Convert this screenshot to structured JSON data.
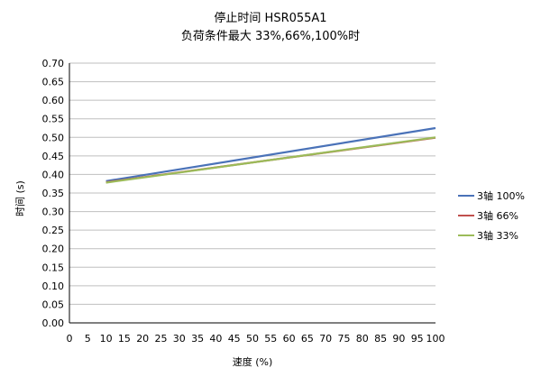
{
  "chart_data": {
    "type": "line",
    "title": "停止时间 HSR055A1",
    "subtitle": "负荷条件最大 33%,66%,100%时",
    "xlabel": "速度 (%)",
    "ylabel": "时间 (s)",
    "xlim": [
      0,
      100
    ],
    "ylim": [
      0.0,
      0.7
    ],
    "x_ticks": [
      "0",
      "5",
      "10",
      "15",
      "20",
      "25",
      "30",
      "35",
      "40",
      "45",
      "50",
      "55",
      "60",
      "65",
      "70",
      "75",
      "80",
      "85",
      "90",
      "95",
      "100"
    ],
    "y_ticks": [
      "0.00",
      "0.05",
      "0.10",
      "0.15",
      "0.20",
      "0.25",
      "0.30",
      "0.35",
      "0.40",
      "0.45",
      "0.50",
      "0.55",
      "0.60",
      "0.65",
      "0.70"
    ],
    "grid": "horizontal",
    "legend_position": "right",
    "series": [
      {
        "name": "3轴 100%",
        "color": "#4a72b8",
        "x": [
          10,
          100
        ],
        "y": [
          0.382,
          0.525
        ]
      },
      {
        "name": "3轴 66%",
        "color": "#c0504d",
        "x": [
          10,
          100
        ],
        "y": [
          0.379,
          0.499
        ]
      },
      {
        "name": "3轴 33%",
        "color": "#9bbb59",
        "x": [
          10,
          100
        ],
        "y": [
          0.378,
          0.5
        ]
      }
    ]
  }
}
